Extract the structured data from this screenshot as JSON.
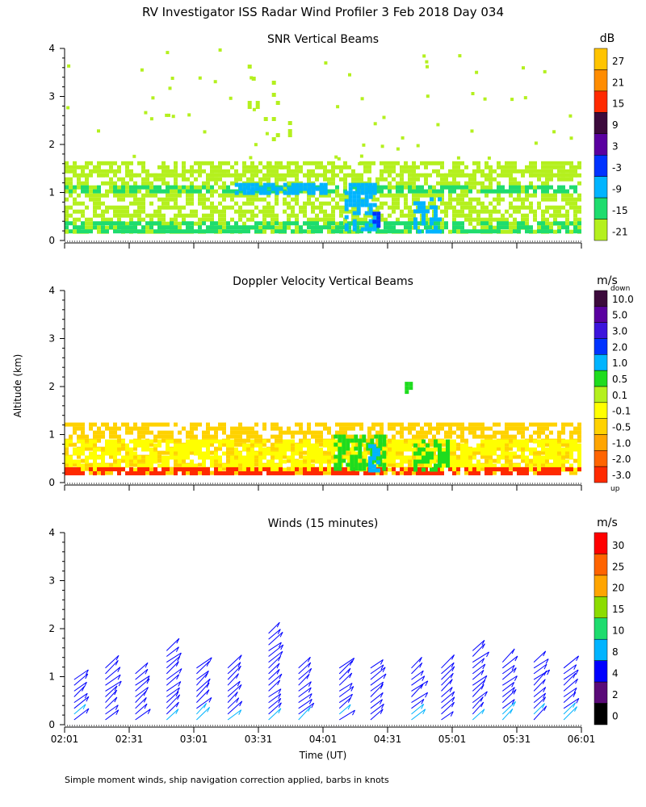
{
  "title": "RV Investigator ISS Radar Wind Profiler    3 Feb 2018 Day 034",
  "ylabel": "Altitude (km)",
  "xlabel": "Time (UT)",
  "footnote": "Simple moment winds, ship navigation correction applied, barbs in knots",
  "time_ticks": [
    "02:01",
    "02:31",
    "03:01",
    "03:31",
    "04:01",
    "04:31",
    "05:01",
    "05:31",
    "06:01"
  ],
  "chart_data": [
    {
      "type": "heatmap",
      "title": "SNR Vertical Beams",
      "xlabel": "Time (UT)",
      "ylabel": "Altitude (km)",
      "xlim": [
        "02:01",
        "06:01"
      ],
      "ylim": [
        0,
        4
      ],
      "y_ticks": [
        "0",
        "1",
        "2",
        "3",
        "4"
      ],
      "colorbar": {
        "unit": "dB",
        "labels": [
          "27",
          "21",
          "15",
          "9",
          "3",
          "-3",
          "-9",
          "-15",
          "-21"
        ],
        "colors": [
          "#ffc400",
          "#ff8c00",
          "#ff2a00",
          "#3c0a3c",
          "#5a00a0",
          "#0033ff",
          "#00b4ff",
          "#1edc6e",
          "#b4f01e"
        ]
      },
      "regions": [
        {
          "t0": 0.0,
          "t1": 240.0,
          "z0": 0.2,
          "z1": 1.4,
          "level": "-21",
          "note": "main echo layer"
        },
        {
          "t0": 0.0,
          "t1": 240.0,
          "z0": 0.2,
          "z1": 0.4,
          "level": "-15"
        },
        {
          "t0": 0.0,
          "t1": 240.0,
          "z0": 1.0,
          "z1": 1.15,
          "level": "-15"
        },
        {
          "t0": 0.0,
          "t1": 240.0,
          "z0": 1.35,
          "z1": 1.65,
          "level": "-21"
        },
        {
          "t0": 130,
          "t1": 145,
          "z0": 0.2,
          "z1": 1.2,
          "level": "-9"
        },
        {
          "t0": 162,
          "t1": 175,
          "z0": 0.2,
          "z1": 0.9,
          "level": "-9"
        },
        {
          "t0": 79,
          "t1": 121,
          "z0": 1.0,
          "z1": 1.2,
          "level": "-9"
        },
        {
          "t0": 143,
          "t1": 146,
          "z0": 0.2,
          "z1": 0.6,
          "level": "-3"
        },
        {
          "t0": 85,
          "t1": 105,
          "z0": 1.5,
          "z1": 4.0,
          "level": "-21",
          "note": "sparse upper echoes"
        }
      ]
    },
    {
      "type": "heatmap",
      "title": "Doppler Velocity Vertical Beams",
      "xlabel": "Time (UT)",
      "ylabel": "Altitude (km)",
      "xlim": [
        "02:01",
        "06:01"
      ],
      "ylim": [
        0,
        4
      ],
      "y_ticks": [
        "0",
        "1",
        "2",
        "3",
        "4"
      ],
      "colorbar": {
        "unit": "m/s",
        "top_label": "down",
        "bottom_label": "up",
        "labels": [
          "10.0",
          "5.0",
          "3.0",
          "2.0",
          "1.0",
          "0.5",
          "0.1",
          "-0.1",
          "-0.5",
          "-1.0",
          "-2.0",
          "-3.0"
        ],
        "colors": [
          "#3c0a3c",
          "#5a00a0",
          "#3c14dc",
          "#0033ff",
          "#00b4ff",
          "#1edc1e",
          "#b4f01e",
          "#ffff00",
          "#ffd200",
          "#ffa500",
          "#ff6400",
          "#ff2a00"
        ]
      },
      "regions": [
        {
          "t0": 0.0,
          "t1": 240.0,
          "z0": 0.2,
          "z1": 1.25,
          "level": "-0.5"
        },
        {
          "t0": 0.0,
          "t1": 240.0,
          "z0": 0.3,
          "z1": 0.9,
          "level": "-0.1"
        },
        {
          "t0": 0.0,
          "t1": 240.0,
          "z0": 0.2,
          "z1": 0.32,
          "level": "-3.0"
        },
        {
          "t0": 125,
          "t1": 148,
          "z0": 0.3,
          "z1": 1.0,
          "level": "0.5"
        },
        {
          "t0": 162,
          "t1": 178,
          "z0": 0.3,
          "z1": 0.9,
          "level": "0.5"
        },
        {
          "t0": 141,
          "t1": 146,
          "z0": 0.25,
          "z1": 0.8,
          "level": "1.0"
        },
        {
          "t0": 158,
          "t1": 160,
          "z0": 1.85,
          "z1": 2.1,
          "level": "0.5"
        }
      ]
    },
    {
      "type": "scatter",
      "title": "Winds (15 minutes)",
      "xlabel": "Time (UT)",
      "ylabel": "Altitude (km)",
      "xlim": [
        "02:01",
        "06:01"
      ],
      "ylim": [
        0,
        4
      ],
      "y_ticks": [
        "0",
        "1",
        "2",
        "3",
        "4"
      ],
      "colorbar": {
        "unit": "m/s",
        "labels": [
          "30",
          "25",
          "20",
          "15",
          "10",
          "8",
          "4",
          "2",
          "0"
        ],
        "colors": [
          "#ff0000",
          "#ff6400",
          "#ffa500",
          "#8cdc00",
          "#1edc6e",
          "#00b4ff",
          "#0000ff",
          "#5a0a78",
          "#000000"
        ]
      },
      "barb_times_min": [
        7,
        30,
        52,
        75,
        97,
        120,
        150,
        172,
        202,
        225,
        255,
        277,
        300,
        322,
        345,
        367
      ],
      "barb_speed_ms": "8-10",
      "profile_tops_km": [
        1.0,
        1.2,
        1.15,
        1.65,
        1.3,
        1.2,
        2.0,
        1.3,
        1.25,
        1.2,
        1.2,
        1.3,
        1.55,
        1.4,
        1.35,
        1.3
      ]
    }
  ]
}
